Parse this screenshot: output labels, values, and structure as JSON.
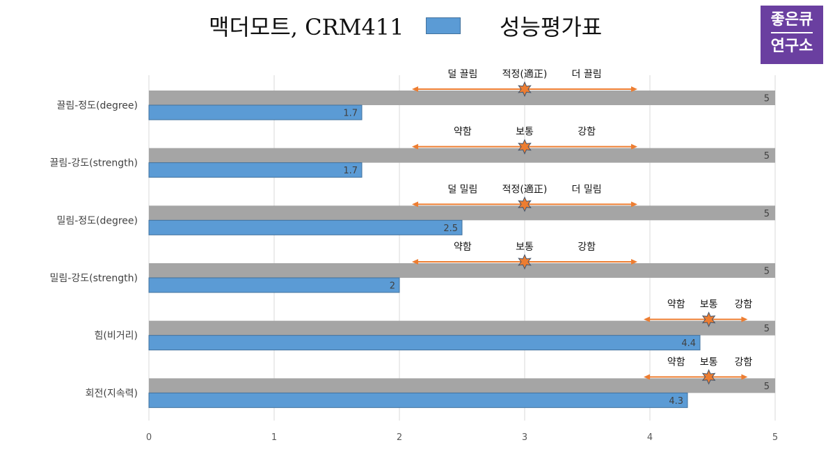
{
  "header": {
    "title_main": "맥더모트, CRM411",
    "title_sub": "성능평가표",
    "series_color": "#5b9bd5"
  },
  "logo": {
    "line1": "좋은큐",
    "line2": "연구소",
    "bg_color": "#6a3fa0"
  },
  "chart_data": {
    "type": "bar",
    "orientation": "horizontal",
    "categories": [
      "끌림-정도(degree)",
      "끌림-강도(strength)",
      "밀림-정도(degree)",
      "밀림-강도(strength)",
      "힘(비거리)",
      "회전(지속력)"
    ],
    "series": [
      {
        "color": "#a5a5a5",
        "values": [
          5,
          5,
          5,
          5,
          5,
          5
        ]
      },
      {
        "color": "#5b9bd5",
        "values": [
          1.7,
          1.7,
          2.5,
          2,
          4.4,
          4.3
        ]
      }
    ],
    "data_labels": {
      "max": [
        "5",
        "5",
        "5",
        "5",
        "5",
        "5"
      ],
      "values": [
        "1.7",
        "1.7",
        "2.5",
        "2",
        "4.4",
        "4.3"
      ]
    },
    "xlim": [
      0,
      5
    ],
    "xticks": [
      "0",
      "1",
      "2",
      "3",
      "4",
      "5"
    ],
    "grid": true,
    "legend": "none",
    "annotations": [
      {
        "left": "덜 끌림",
        "mid": "적정(適正)",
        "right": "더 끌림",
        "from": 2.1,
        "center": 3.0,
        "to": 3.9
      },
      {
        "left": "약함",
        "mid": "보통",
        "right": "강함",
        "from": 2.1,
        "center": 3.0,
        "to": 3.9
      },
      {
        "left": "덜 밀림",
        "mid": "적정(適正)",
        "right": "더 밀림",
        "from": 2.1,
        "center": 3.0,
        "to": 3.9
      },
      {
        "left": "약함",
        "mid": "보통",
        "right": "강함",
        "from": 2.1,
        "center": 3.0,
        "to": 3.9
      },
      {
        "left": "약함",
        "mid": "보통",
        "right": "강함",
        "from": 3.95,
        "center": 4.47,
        "to": 4.78
      },
      {
        "left": "약함",
        "mid": "보통",
        "right": "강함",
        "from": 3.95,
        "center": 4.47,
        "to": 4.78
      }
    ],
    "annotation_color": "#ed7d31"
  }
}
